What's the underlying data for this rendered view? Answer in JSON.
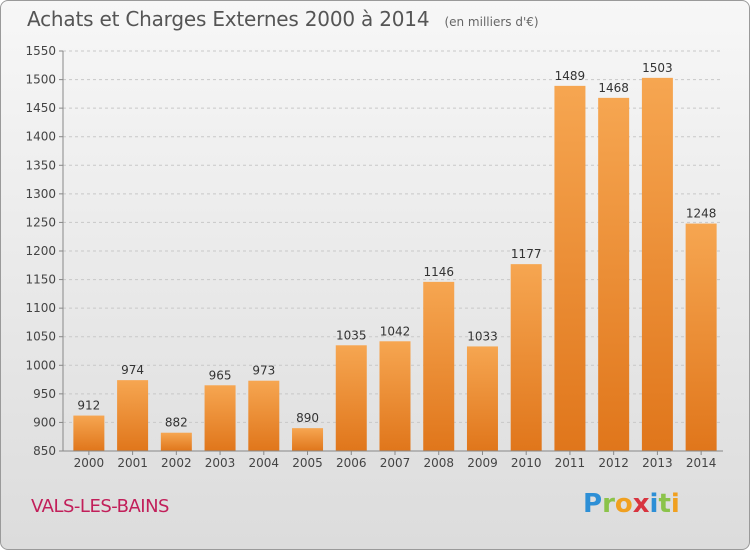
{
  "header": {
    "title": "Achats et Charges Externes 2000 à 2014",
    "subtitle": "(en milliers d'€)"
  },
  "footer": {
    "place": "VALS-LES-BAINS",
    "logo": [
      "P",
      "r",
      "o",
      "x",
      "i",
      "t",
      "i"
    ]
  },
  "colors": {
    "bar_light": "#f6a651",
    "bar_dark": "#e0761b",
    "title": "#555555",
    "place": "#c21f5a"
  },
  "chart_data": {
    "type": "bar",
    "categories": [
      "2000",
      "2001",
      "2002",
      "2003",
      "2004",
      "2005",
      "2006",
      "2007",
      "2008",
      "2009",
      "2010",
      "2011",
      "2012",
      "2013",
      "2014"
    ],
    "values": [
      912,
      974,
      882,
      965,
      973,
      890,
      1035,
      1042,
      1146,
      1033,
      1177,
      1489,
      1468,
      1503,
      1248
    ],
    "title": "Achats et Charges Externes 2000 à 2014",
    "subtitle": "(en milliers d'€)",
    "ylim": [
      850,
      1550
    ],
    "yticks": [
      850,
      900,
      950,
      1000,
      1050,
      1100,
      1150,
      1200,
      1250,
      1300,
      1350,
      1400,
      1450,
      1500,
      1550
    ],
    "grid": true
  }
}
